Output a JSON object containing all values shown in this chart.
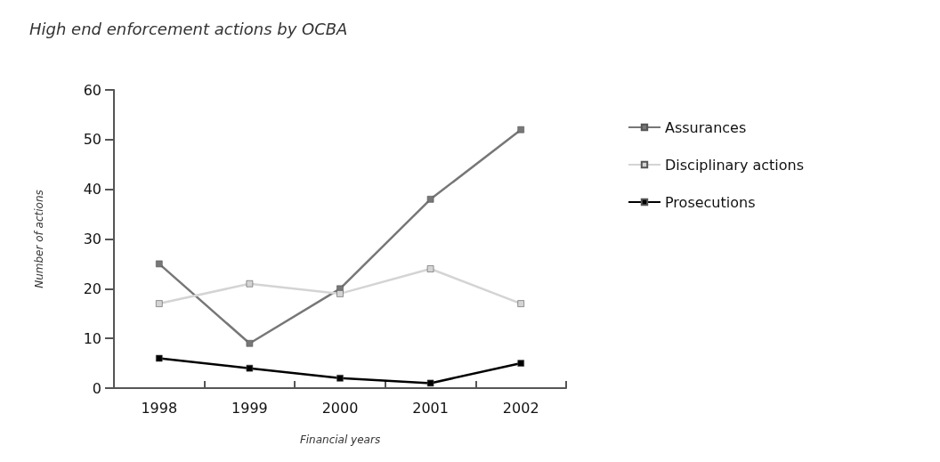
{
  "chart_data": {
    "type": "line",
    "title": "High end enforcement actions by OCBA",
    "xlabel": "Financial years",
    "ylabel": "Number of actions",
    "categories": [
      "1998",
      "1999",
      "2000",
      "2001",
      "2002"
    ],
    "series": [
      {
        "name": "Assurances",
        "color": "#777777",
        "values": [
          25,
          9,
          20,
          38,
          52
        ]
      },
      {
        "name": "Disciplinary actions",
        "color": "#d4d4d4",
        "values": [
          17,
          21,
          19,
          24,
          17
        ]
      },
      {
        "name": "Prosecutions",
        "color": "#000000",
        "values": [
          6,
          4,
          2,
          1,
          5
        ]
      }
    ],
    "ylim": [
      0,
      60
    ],
    "yticks": [
      0,
      10,
      20,
      30,
      40,
      50,
      60
    ],
    "grid": false,
    "legend": "right",
    "marker": "square",
    "line_style": "solid"
  }
}
